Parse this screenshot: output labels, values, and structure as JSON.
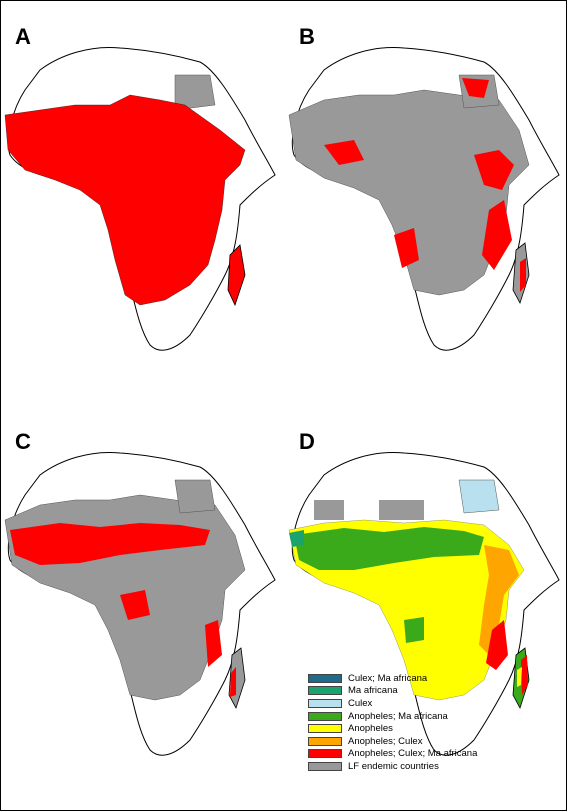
{
  "panels": [
    {
      "label": "A",
      "fill": "#ff0000",
      "regions": [
        "west-africa-band",
        "central-africa",
        "east-africa",
        "southern-interior",
        "madagascar"
      ]
    },
    {
      "label": "B",
      "fill": "#ff0000",
      "regions": [
        "nile-delta",
        "ethiopian-highlands",
        "east-coast",
        "west-coast-patches",
        "madagascar-east"
      ]
    },
    {
      "label": "C",
      "fill": "#ff0000",
      "regions": [
        "sahel-belt",
        "central-patches",
        "east-coast",
        "madagascar-west"
      ]
    },
    {
      "label": "D",
      "fill": "mixed",
      "regions": [
        "composite-vector-distribution"
      ]
    }
  ],
  "legend": {
    "items": [
      {
        "label": "Culex; Ma africana",
        "color": "#1f6b8c"
      },
      {
        "label": "Ma africana",
        "color": "#1aa36f"
      },
      {
        "label": "Culex",
        "color": "#b9e0ee"
      },
      {
        "label": "Anopheles; Ma africana",
        "color": "#3aaa1a"
      },
      {
        "label": "Anopheles",
        "color": "#ffff00"
      },
      {
        "label": "Anopheles; Culex",
        "color": "#ffa500"
      },
      {
        "label": "Anopheles; Culex; Ma africana",
        "color": "#ff0000"
      },
      {
        "label": "LF endemic countries",
        "color": "#999999"
      }
    ]
  },
  "colors": {
    "land_outline": "#000000",
    "lf_endemic_gray": "#999999",
    "white_land": "#ffffff",
    "red": "#ff0000"
  }
}
